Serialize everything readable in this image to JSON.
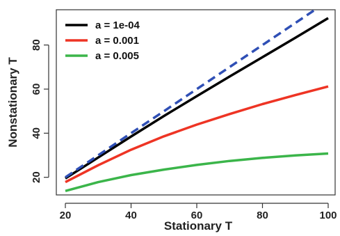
{
  "chart_data": {
    "type": "line",
    "xlabel": "Stationary T",
    "ylabel": "Nonstationary T",
    "xlim": [
      20,
      100
    ],
    "ylim": [
      12,
      96
    ],
    "xticks": [
      20,
      40,
      60,
      80,
      100
    ],
    "yticks": [
      20,
      40,
      60,
      80
    ],
    "legend_position": "top-left",
    "grid": false,
    "x": [
      20,
      30,
      40,
      50,
      60,
      70,
      80,
      90,
      100
    ],
    "series": [
      {
        "name": "a = 1e-04",
        "color": "#000000",
        "dashed": false,
        "values": [
          19.5,
          29.0,
          38.5,
          47.8,
          56.8,
          65.7,
          74.5,
          83.3,
          92.2
        ]
      },
      {
        "name": "a = 0.001",
        "color": "#ee3424",
        "dashed": false,
        "values": [
          17.8,
          25.5,
          32.5,
          38.6,
          43.9,
          48.7,
          53.2,
          57.3,
          61.2
        ]
      },
      {
        "name": "a = 0.005",
        "color": "#3bb54a",
        "dashed": false,
        "values": [
          13.8,
          17.8,
          21.0,
          23.5,
          25.6,
          27.4,
          28.8,
          29.9,
          30.8
        ]
      },
      {
        "name": "",
        "color": "#2f4fb5",
        "dashed": true,
        "values": [
          20,
          30,
          40,
          50,
          60,
          70,
          80,
          90,
          100
        ]
      }
    ]
  }
}
